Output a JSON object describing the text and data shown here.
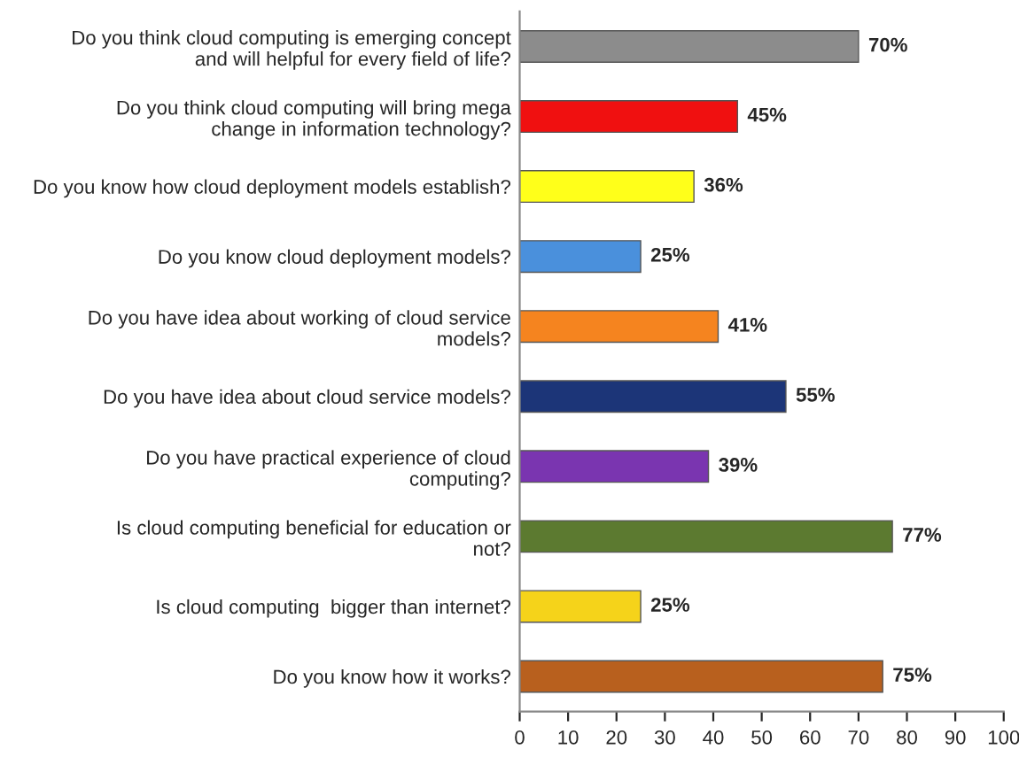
{
  "chart_data": {
    "type": "bar",
    "orientation": "horizontal",
    "categories": [
      "Do you think cloud computing is emerging concept and will helpful for every field of life?",
      "Do you think cloud computing will bring mega change in information technology?",
      "Do you know how cloud deployment models establish?",
      "Do you know cloud deployment models?",
      "Do you have idea about working of cloud service models?",
      "Do you have idea about cloud service models?",
      "Do you have practical experience of cloud computing?",
      "Is cloud computing beneficial for education or not?",
      "Is cloud computing  bigger than internet?",
      "Do you know how it works?"
    ],
    "values": [
      70,
      45,
      36,
      25,
      41,
      55,
      39,
      77,
      25,
      75
    ],
    "value_labels": [
      "70%",
      "45%",
      "36%",
      "25%",
      "41%",
      "55%",
      "39%",
      "77%",
      "25%",
      "75%"
    ],
    "colors": [
      "#8c8c8c",
      "#f01010",
      "#ffff1a",
      "#4a90dc",
      "#f5841f",
      "#1c3578",
      "#7a35b0",
      "#5c7a30",
      "#f5d31a",
      "#b8601e"
    ],
    "xlim": [
      0,
      100
    ],
    "xticks": [
      0,
      10,
      20,
      30,
      40,
      50,
      60,
      70,
      80,
      90,
      100
    ],
    "grid": false
  }
}
